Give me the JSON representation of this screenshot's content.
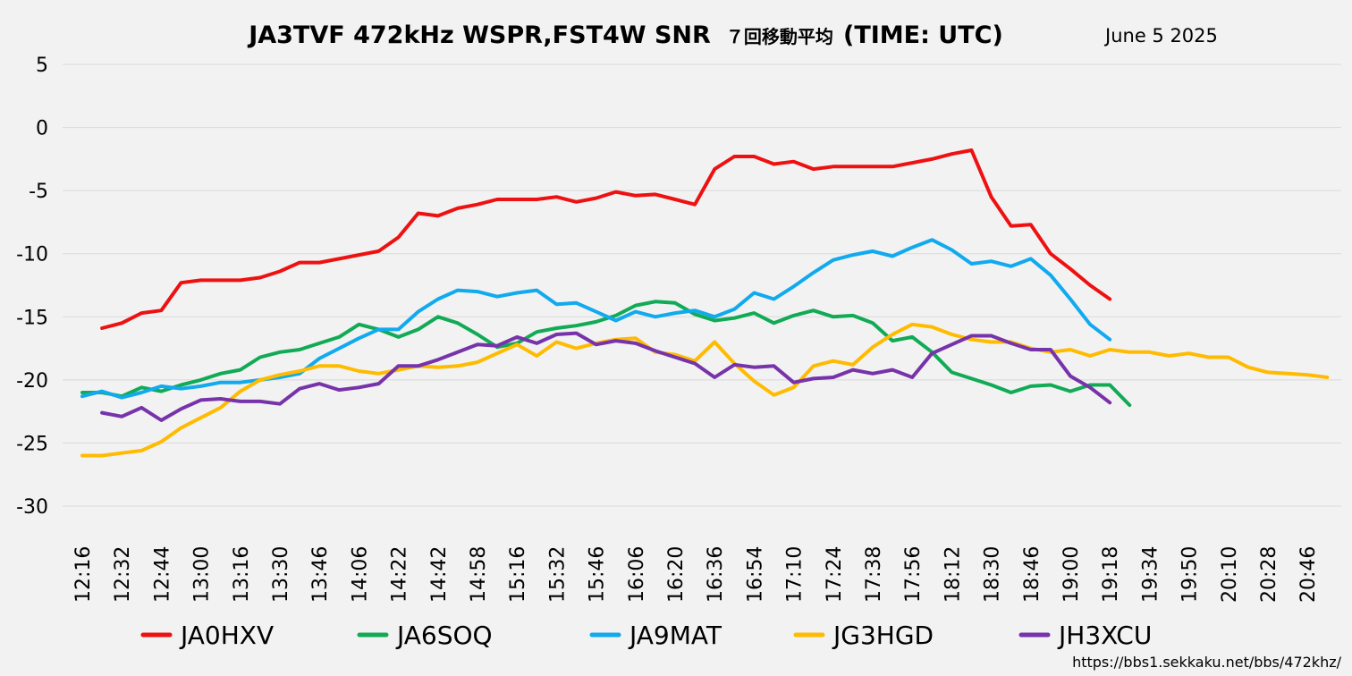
{
  "chart_data": {
    "type": "line",
    "title": "JA3TVF 472kHz WSPR,FST4W SNR",
    "title_suffix": "７回移動平均",
    "title_time": "(TIME: UTC)",
    "date": "June 5 2025",
    "source_url": "https://bbs1.sekkaku.net/bbs/472khz/",
    "ylim": [
      -30,
      5
    ],
    "yticks": [
      5,
      0,
      -5,
      -10,
      -15,
      -20,
      -25,
      -30
    ],
    "grid": true,
    "legend_position": "bottom",
    "x": [
      "12:16",
      "12:24",
      "12:32",
      "12:38",
      "12:44",
      "12:52",
      "13:00",
      "13:08",
      "13:16",
      "13:24",
      "13:30",
      "13:38",
      "13:46",
      "13:56",
      "14:06",
      "14:14",
      "14:22",
      "14:32",
      "14:42",
      "14:50",
      "14:58",
      "15:06",
      "15:16",
      "15:24",
      "15:32",
      "15:40",
      "15:46",
      "15:56",
      "16:06",
      "16:12",
      "16:20",
      "16:28",
      "16:36",
      "16:44",
      "16:54",
      "17:02",
      "17:10",
      "17:18",
      "17:24",
      "17:32",
      "17:38",
      "17:48",
      "17:56",
      "18:04",
      "18:12",
      "18:22",
      "18:30",
      "18:38",
      "18:46",
      "18:54",
      "19:00",
      "19:10",
      "19:18",
      "19:26",
      "19:34",
      "19:42",
      "19:50",
      "19:58",
      "20:10",
      "20:18",
      "20:28",
      "20:38",
      "20:46",
      "20:54"
    ],
    "x_tick_labels": [
      "12:16",
      "12:32",
      "12:44",
      "13:00",
      "13:16",
      "13:30",
      "13:46",
      "14:06",
      "14:22",
      "14:42",
      "14:58",
      "15:16",
      "15:32",
      "15:46",
      "16:06",
      "16:20",
      "16:36",
      "16:54",
      "17:10",
      "17:24",
      "17:38",
      "17:56",
      "18:12",
      "18:30",
      "18:46",
      "19:00",
      "19:18",
      "19:34",
      "19:50",
      "20:10",
      "20:28",
      "20:46"
    ],
    "series": [
      {
        "name": "JA0HXV",
        "color": "#ee1111",
        "values": [
          null,
          -15.9,
          -15.5,
          -14.7,
          -14.5,
          -12.3,
          -12.1,
          -12.1,
          -12.1,
          -11.9,
          -11.4,
          -10.7,
          -10.7,
          -10.4,
          -10.1,
          -9.8,
          -8.7,
          -6.8,
          -7.0,
          -6.4,
          -6.1,
          -5.7,
          -5.7,
          -5.7,
          -5.5,
          -5.9,
          -5.6,
          -5.1,
          -5.4,
          -5.3,
          -5.7,
          -6.1,
          -3.3,
          -2.3,
          -2.3,
          -2.9,
          -2.7,
          -3.3,
          -3.1,
          -3.1,
          -3.1,
          -3.1,
          -2.8,
          -2.5,
          -2.1,
          -1.8,
          -5.5,
          -7.8,
          -7.7,
          -10.0,
          -11.2,
          -12.5,
          -13.6,
          null,
          null,
          null,
          null,
          null,
          null,
          null,
          null,
          null,
          null,
          null
        ]
      },
      {
        "name": "JA6SOQ",
        "color": "#11aa55",
        "values": [
          -21.0,
          -21.0,
          -21.3,
          -20.6,
          -20.9,
          -20.4,
          -20.0,
          -19.5,
          -19.2,
          -18.2,
          -17.8,
          -17.6,
          -17.1,
          -16.6,
          -15.6,
          -16.0,
          -16.6,
          -16.0,
          -15.0,
          -15.5,
          -16.4,
          -17.4,
          -17.1,
          -16.2,
          -15.9,
          -15.7,
          -15.4,
          -14.9,
          -14.1,
          -13.8,
          -13.9,
          -14.8,
          -15.3,
          -15.1,
          -14.7,
          -15.5,
          -14.9,
          -14.5,
          -15.0,
          -14.9,
          -15.5,
          -16.9,
          -16.6,
          -17.8,
          -19.4,
          -19.9,
          -20.4,
          -21.0,
          -20.5,
          -20.4,
          -20.9,
          -20.4,
          -20.4,
          -22.0,
          null,
          null,
          null,
          null,
          null,
          null,
          null,
          null,
          null,
          null
        ]
      },
      {
        "name": "JA9MAT",
        "color": "#11aaee",
        "values": [
          -21.3,
          -20.9,
          -21.4,
          -21.0,
          -20.5,
          -20.7,
          -20.5,
          -20.2,
          -20.2,
          -20.0,
          -19.8,
          -19.5,
          -18.3,
          -17.5,
          -16.7,
          -16.0,
          -16.0,
          -14.6,
          -13.6,
          -12.9,
          -13.0,
          -13.4,
          -13.1,
          -12.9,
          -14.0,
          -13.9,
          -14.6,
          -15.3,
          -14.6,
          -15.0,
          -14.7,
          -14.5,
          -15.0,
          -14.4,
          -13.1,
          -13.6,
          -12.6,
          -11.5,
          -10.5,
          -10.1,
          -9.8,
          -10.2,
          -9.5,
          -8.9,
          -9.7,
          -10.8,
          -10.6,
          -11.0,
          -10.4,
          -11.7,
          -13.6,
          -15.6,
          -16.8,
          null,
          null,
          null,
          null,
          null,
          null,
          null,
          null,
          null,
          null,
          null
        ]
      },
      {
        "name": "JG3HGD",
        "color": "#ffbb00",
        "values": [
          -26.0,
          -26.0,
          -25.8,
          -25.6,
          -24.9,
          -23.8,
          -23.0,
          -22.2,
          -20.9,
          -20.0,
          -19.6,
          -19.3,
          -18.9,
          -18.9,
          -19.3,
          -19.5,
          -19.2,
          -18.9,
          -19.0,
          -18.9,
          -18.6,
          -17.9,
          -17.2,
          -18.1,
          -17.0,
          -17.5,
          -17.1,
          -16.8,
          -16.7,
          -17.8,
          -18.0,
          -18.5,
          -17.0,
          -18.7,
          -20.1,
          -21.2,
          -20.6,
          -18.9,
          -18.5,
          -18.8,
          -17.4,
          -16.4,
          -15.6,
          -15.8,
          -16.4,
          -16.8,
          -17.0,
          -17.0,
          -17.5,
          -17.8,
          -17.6,
          -18.1,
          -17.6,
          -17.8,
          -17.8,
          -18.1,
          -17.9,
          -18.2,
          -18.2,
          -19.0,
          -19.4,
          -19.5,
          -19.6,
          -19.8
        ]
      },
      {
        "name": "JH3XCU",
        "color": "#7733aa",
        "values": [
          null,
          -22.6,
          -22.9,
          -22.2,
          -23.2,
          -22.3,
          -21.6,
          -21.5,
          -21.7,
          -21.7,
          -21.9,
          -20.7,
          -20.3,
          -20.8,
          -20.6,
          -20.3,
          -18.9,
          -18.9,
          -18.4,
          -17.8,
          -17.2,
          -17.3,
          -16.6,
          -17.1,
          -16.4,
          -16.3,
          -17.2,
          -16.9,
          -17.1,
          -17.7,
          -18.2,
          -18.7,
          -19.8,
          -18.8,
          -19.0,
          -18.9,
          -20.2,
          -19.9,
          -19.8,
          -19.2,
          -19.5,
          -19.2,
          -19.8,
          -17.9,
          -17.2,
          -16.5,
          -16.5,
          -17.1,
          -17.6,
          -17.6,
          -19.7,
          -20.6,
          -21.8,
          null,
          null,
          null,
          null,
          null,
          null,
          null,
          null,
          null,
          null,
          null
        ]
      }
    ]
  }
}
